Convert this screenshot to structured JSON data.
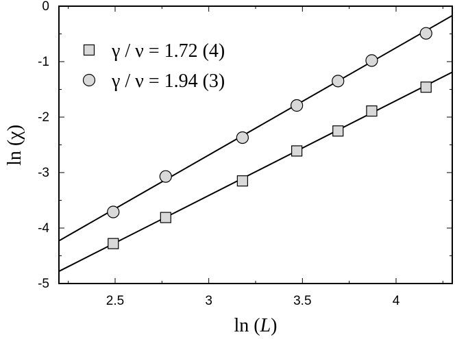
{
  "chart_data": {
    "type": "scatter",
    "title": "",
    "xlabel": {
      "prefix": "ln (",
      "var": "L",
      "suffix": ")"
    },
    "ylabel": "ln (χ)",
    "xlim": [
      2.2,
      4.3
    ],
    "ylim": [
      -5,
      0
    ],
    "xticks": [
      2.5,
      3,
      3.5,
      4
    ],
    "xtick_labels": [
      "2.5",
      "3",
      "3.5",
      "4"
    ],
    "yticks": [
      0,
      -1,
      -2,
      -3,
      -4,
      -5
    ],
    "ytick_labels": [
      "0",
      "-1",
      "-2",
      "-3",
      "-4",
      "-5"
    ],
    "grid": false,
    "legend_position": "top-left",
    "colors": {
      "marker_fill": "#d9d9d9",
      "stroke": "#000000"
    },
    "series": [
      {
        "name": "γ / ν = 1.72 (4)",
        "marker": "square",
        "x": [
          2.49,
          2.77,
          3.18,
          3.47,
          3.69,
          3.87,
          4.16
        ],
        "y": [
          -4.28,
          -3.81,
          -3.15,
          -2.61,
          -2.25,
          -1.89,
          -1.46
        ],
        "fit": {
          "x": [
            2.2,
            4.3
          ],
          "y": [
            -4.78,
            -1.19
          ]
        }
      },
      {
        "name": "γ / ν = 1.94 (3)",
        "marker": "circle",
        "x": [
          2.49,
          2.77,
          3.18,
          3.47,
          3.69,
          3.87,
          4.16
        ],
        "y": [
          -3.71,
          -3.07,
          -2.37,
          -1.79,
          -1.35,
          -0.98,
          -0.49
        ],
        "fit": {
          "x": [
            2.2,
            4.3
          ],
          "y": [
            -4.23,
            -0.17
          ]
        }
      }
    ]
  }
}
